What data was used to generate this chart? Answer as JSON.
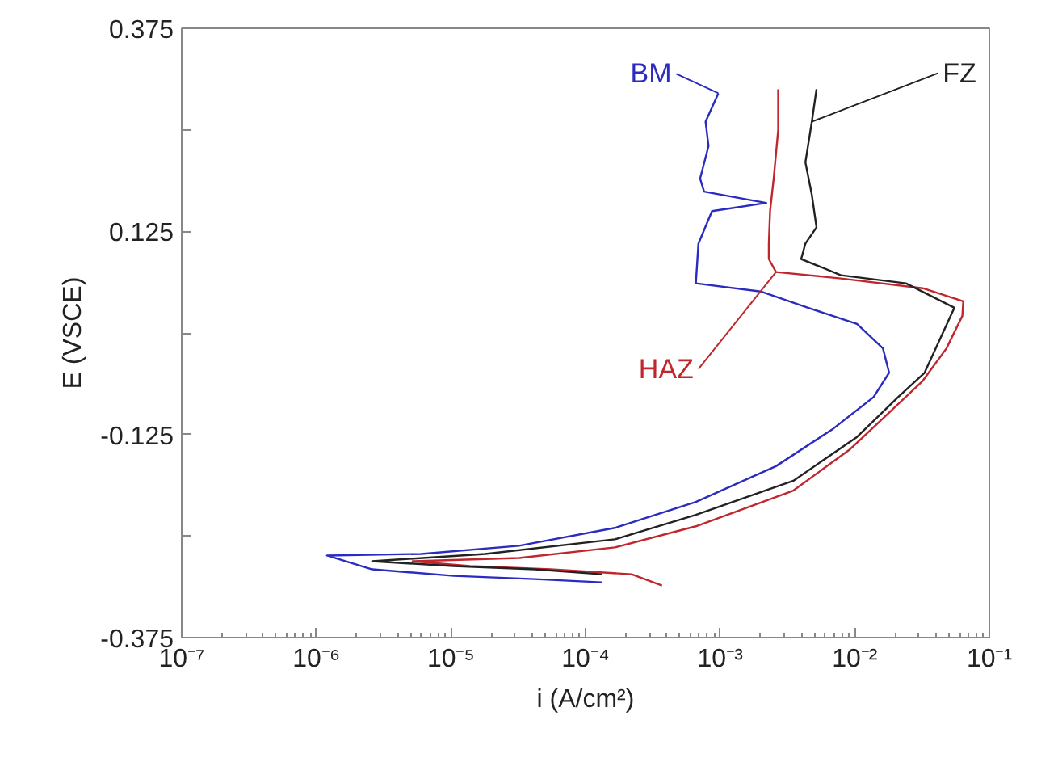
{
  "chart_data": {
    "type": "line",
    "xlabel": "i (A/cm²)",
    "ylabel": "E (VSCE)",
    "log": "x",
    "xlim": [
      1e-07,
      0.1
    ],
    "ylim": [
      -0.375,
      0.375
    ],
    "xticks": [
      {
        "value": 1e-07,
        "label": "10⁻⁷"
      },
      {
        "value": 1e-06,
        "label": "10⁻⁶"
      },
      {
        "value": 1e-05,
        "label": "10⁻⁵"
      },
      {
        "value": 0.0001,
        "label": "10⁻⁴"
      },
      {
        "value": 0.001,
        "label": "10⁻³"
      },
      {
        "value": 0.01,
        "label": "10⁻²"
      },
      {
        "value": 0.1,
        "label": "10⁻¹"
      }
    ],
    "yticks": [
      -0.375,
      {
        "value": -0.25,
        "label": null
      },
      -0.125,
      {
        "value": 0,
        "label": null
      },
      0.125,
      {
        "value": 0.25,
        "label": null
      },
      0.375
    ],
    "grid": false,
    "marker": "none",
    "line_style": "solid",
    "series": [
      {
        "color": "#2b2bc0",
        "x": [
          0.000132,
          4.2e-05,
          1.05e-05,
          2.6e-06,
          1.2e-06,
          6e-06,
          3.2e-05,
          0.000165,
          0.00066,
          0.0026,
          0.0069,
          0.0138,
          0.018,
          0.0162,
          0.0104,
          0.0045,
          0.002,
          0.00066,
          0.00069,
          0.00087,
          0.0022,
          0.00076,
          0.00071,
          0.00082,
          0.00078,
          0.00097
        ],
        "values": [
          -0.307,
          -0.303,
          -0.299,
          -0.291,
          -0.274,
          -0.272,
          -0.262,
          -0.24,
          -0.208,
          -0.164,
          -0.118,
          -0.079,
          -0.049,
          -0.019,
          0.011,
          0.031,
          0.051,
          0.061,
          0.11,
          0.15,
          0.16,
          0.174,
          0.19,
          0.23,
          0.26,
          0.295
        ]
      },
      {
        "color": "#c0272d",
        "x": [
          0.00037,
          0.00022,
          5.5e-05,
          1.38e-05,
          5.2e-06,
          3.2e-05,
          0.000165,
          0.00066,
          0.0035,
          0.0091,
          0.018,
          0.032,
          0.048,
          0.063,
          0.064,
          0.032,
          0.0079,
          0.0026,
          0.0023,
          0.0023,
          0.00235,
          0.0025,
          0.0027,
          0.0027
        ],
        "values": [
          -0.311,
          -0.297,
          -0.291,
          -0.287,
          -0.281,
          -0.277,
          -0.264,
          -0.238,
          -0.194,
          -0.144,
          -0.098,
          -0.059,
          -0.019,
          0.021,
          0.039,
          0.055,
          0.067,
          0.075,
          0.091,
          0.11,
          0.15,
          0.19,
          0.25,
          0.3
        ]
      },
      {
        "color": "#222222",
        "x": [
          0.000132,
          4.2e-05,
          1.05e-05,
          2.6e-06,
          1.8e-05,
          0.000165,
          0.00066,
          0.0035,
          0.0104,
          0.021,
          0.033,
          0.055,
          0.024,
          0.0079,
          0.004,
          0.0043,
          0.0052,
          0.0048,
          0.0043,
          0.0048,
          0.0052
        ],
        "values": [
          -0.297,
          -0.291,
          -0.287,
          -0.281,
          -0.272,
          -0.254,
          -0.224,
          -0.182,
          -0.128,
          -0.079,
          -0.049,
          0.031,
          0.061,
          0.071,
          0.091,
          0.11,
          0.13,
          0.17,
          0.21,
          0.26,
          0.3
        ]
      }
    ],
    "annotations": [
      {
        "text": "BM",
        "x": 0.00097,
        "y": 0.295
      },
      {
        "text": "HAZ",
        "x": 0.0026,
        "y": 0.075
      },
      {
        "text": "FZ",
        "x": 0.0048,
        "y": 0.26
      }
    ]
  }
}
